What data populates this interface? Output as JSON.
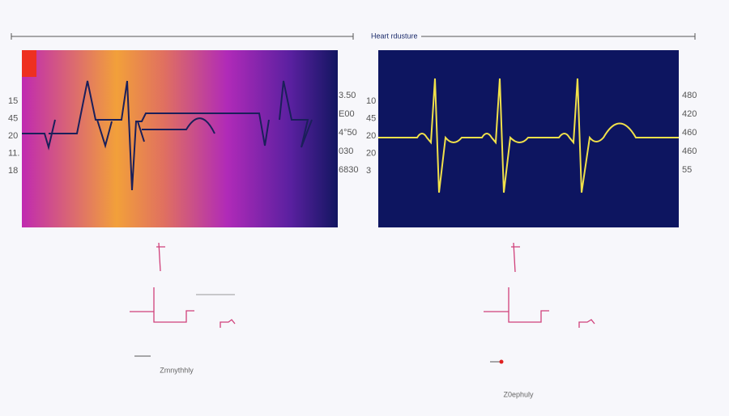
{
  "header": {
    "title": "Heart rdusture"
  },
  "panels": [
    {
      "left_labels": [
        "15",
        "45",
        "20",
        "11.",
        "18"
      ],
      "right_labels": [
        "3.50",
        "E00",
        "4°50",
        "030",
        "6830"
      ],
      "caption": "Zmnythhly"
    },
    {
      "left_labels": [
        "10",
        "45",
        "20",
        "20",
        "3"
      ],
      "right_labels": [
        "480",
        "420",
        "460",
        "460",
        "55"
      ],
      "caption": "Z0ephuly"
    }
  ]
}
